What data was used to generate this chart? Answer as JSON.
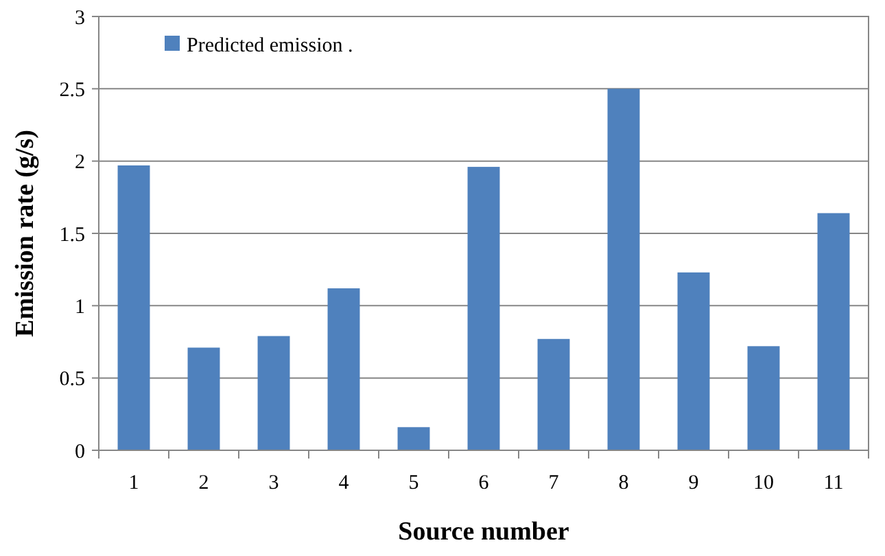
{
  "chart_data": {
    "type": "bar",
    "xlabel": "Source number",
    "ylabel": "Emission rate (g/s)",
    "categories": [
      "1",
      "2",
      "3",
      "4",
      "5",
      "6",
      "7",
      "8",
      "9",
      "10",
      "11"
    ],
    "series": [
      {
        "name": "Predicted emission .",
        "color": "#4f81bd",
        "values": [
          1.97,
          0.71,
          0.79,
          1.12,
          0.16,
          1.96,
          0.77,
          2.5,
          1.23,
          0.72,
          1.64
        ]
      }
    ],
    "ylim": [
      0,
      3
    ],
    "yticks": [
      0,
      {
        "value": 0.5,
        "label": "0.5"
      },
      1,
      {
        "value": 1.5,
        "label": "1.5"
      },
      2,
      {
        "value": 2.5,
        "label": "2.5"
      },
      3
    ],
    "grid": "y",
    "legend": "top left"
  }
}
